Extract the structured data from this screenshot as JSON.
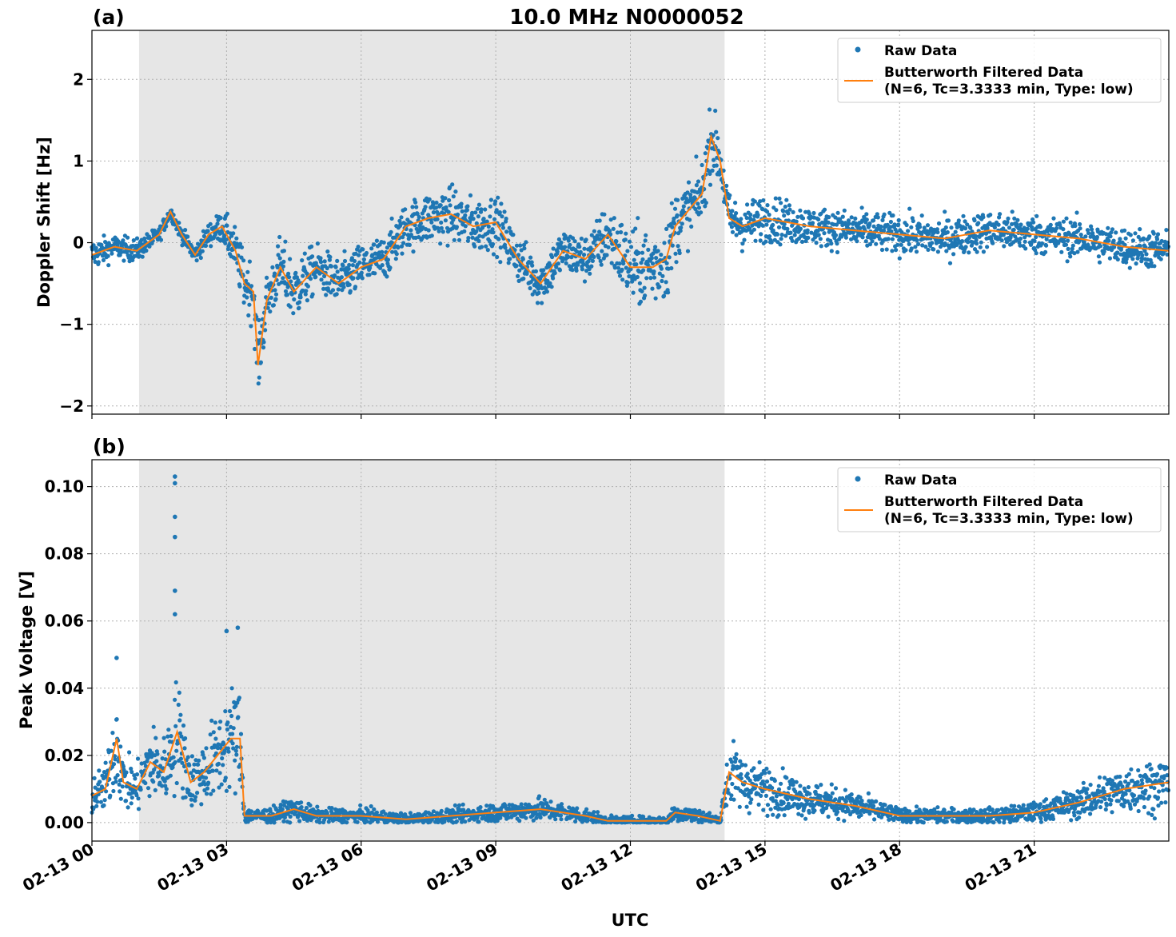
{
  "figure": {
    "title": "10.0 MHz N0000052",
    "xlabel": "UTC",
    "colors": {
      "raw": "#1f77b4",
      "filtered": "#ff7f0e",
      "night_shade": "#e6e6e6"
    },
    "x_ticks": [
      "02-13 00",
      "02-13 03",
      "02-13 06",
      "02-13 09",
      "02-13 12",
      "02-13 15",
      "02-13 18",
      "02-13 21"
    ]
  },
  "legend": {
    "raw_label": "Raw Data",
    "filtered_label_1": "Butterworth Filtered Data",
    "filtered_label_2": "(N=6, Tc=3.3333 min, Type: low)"
  },
  "chart_data": [
    {
      "type": "scatter",
      "panel_label": "(a)",
      "ylabel": "Doppler Shift [Hz]",
      "xlabel": "",
      "x_unit": "hours since 02-13 00:00 UTC",
      "xlim": [
        0,
        24
      ],
      "ylim": [
        -2.1,
        2.6
      ],
      "y_ticks": [
        -2,
        -1,
        0,
        1,
        2
      ],
      "y_tick_labels": [
        "−2",
        "−1",
        "0",
        "1",
        "2"
      ],
      "grid": true,
      "legend_position": "top-right",
      "shaded_interval_hours": [
        1.05,
        14.1
      ],
      "series": [
        {
          "name": "Butterworth Filtered Data",
          "x": [
            0,
            0.5,
            1.0,
            1.5,
            1.75,
            2.0,
            2.3,
            2.6,
            2.9,
            3.2,
            3.4,
            3.6,
            3.7,
            3.9,
            4.2,
            4.5,
            5.0,
            5.5,
            6.0,
            6.5,
            7.0,
            7.5,
            8.0,
            8.5,
            9.0,
            9.5,
            10.0,
            10.5,
            11.0,
            11.5,
            12.0,
            12.5,
            12.8,
            13.0,
            13.3,
            13.6,
            13.8,
            14.0,
            14.2,
            14.5,
            15.0,
            16.0,
            17.0,
            18.0,
            19.0,
            20.0,
            21.0,
            22.0,
            23.0,
            24.0
          ],
          "values": [
            -0.15,
            -0.05,
            -0.1,
            0.1,
            0.38,
            0.1,
            -0.15,
            0.1,
            0.2,
            -0.1,
            -0.5,
            -0.6,
            -1.5,
            -0.7,
            -0.3,
            -0.6,
            -0.3,
            -0.5,
            -0.3,
            -0.2,
            0.2,
            0.3,
            0.35,
            0.2,
            0.25,
            -0.2,
            -0.5,
            -0.1,
            -0.2,
            0.1,
            -0.3,
            -0.3,
            -0.2,
            0.2,
            0.4,
            0.6,
            1.3,
            1.0,
            0.3,
            0.2,
            0.3,
            0.2,
            0.15,
            0.1,
            0.05,
            0.15,
            0.1,
            0.05,
            -0.05,
            -0.1
          ]
        },
        {
          "name": "Raw Data",
          "spread_envelope_hz": [
            0.2,
            0.15,
            0.15,
            0.1,
            0.08,
            0.1,
            0.12,
            0.15,
            0.2,
            0.3,
            0.35,
            0.4,
            0.4,
            0.35,
            0.4,
            0.4,
            0.3,
            0.3,
            0.3,
            0.3,
            0.3,
            0.35,
            0.35,
            0.35,
            0.35,
            0.3,
            0.3,
            0.3,
            0.3,
            0.4,
            0.5,
            0.5,
            0.55,
            0.45,
            0.4,
            0.4,
            0.45,
            0.35,
            0.3,
            0.3,
            0.3,
            0.25,
            0.25,
            0.25,
            0.25,
            0.25,
            0.25,
            0.25,
            0.25,
            0.25
          ]
        }
      ]
    },
    {
      "type": "scatter",
      "panel_label": "(b)",
      "ylabel": "Peak Voltage [V]",
      "xlabel": "UTC",
      "x_unit": "hours since 02-13 00:00 UTC",
      "xlim": [
        0,
        24
      ],
      "ylim": [
        -0.0055,
        0.108
      ],
      "y_ticks": [
        0,
        0.02,
        0.04,
        0.06,
        0.08,
        0.1
      ],
      "y_tick_labels": [
        "0.00",
        "0.02",
        "0.04",
        "0.06",
        "0.08",
        "0.10"
      ],
      "grid": true,
      "legend_position": "top-right",
      "shaded_interval_hours": [
        1.05,
        14.1
      ],
      "series": [
        {
          "name": "Butterworth Filtered Data",
          "x": [
            0,
            0.3,
            0.55,
            0.7,
            1.0,
            1.3,
            1.6,
            1.9,
            2.2,
            2.5,
            2.8,
            3.1,
            3.3,
            3.4,
            4.0,
            4.5,
            5.0,
            6.0,
            7.0,
            8.0,
            9.0,
            10.0,
            11.0,
            11.5,
            12.0,
            12.8,
            13.0,
            13.5,
            14.0,
            14.2,
            14.5,
            15.0,
            16.0,
            17.0,
            18.0,
            19.0,
            20.0,
            21.0,
            22.0,
            23.0,
            24.0
          ],
          "values": [
            0.008,
            0.01,
            0.025,
            0.012,
            0.01,
            0.018,
            0.015,
            0.027,
            0.012,
            0.015,
            0.02,
            0.025,
            0.025,
            0.002,
            0.002,
            0.004,
            0.002,
            0.002,
            0.001,
            0.002,
            0.003,
            0.004,
            0.002,
            0.0005,
            0.0005,
            0.0005,
            0.003,
            0.002,
            0.0005,
            0.015,
            0.012,
            0.01,
            0.007,
            0.005,
            0.002,
            0.002,
            0.002,
            0.003,
            0.006,
            0.01,
            0.012
          ]
        },
        {
          "name": "Raw Data",
          "outliers": [
            {
              "x": 1.85,
              "y": 0.103
            },
            {
              "x": 1.85,
              "y": 0.101
            },
            {
              "x": 1.85,
              "y": 0.091
            },
            {
              "x": 1.85,
              "y": 0.085
            },
            {
              "x": 1.85,
              "y": 0.069
            },
            {
              "x": 1.85,
              "y": 0.062
            },
            {
              "x": 3.0,
              "y": 0.057
            },
            {
              "x": 3.25,
              "y": 0.058
            },
            {
              "x": 0.55,
              "y": 0.049
            }
          ]
        }
      ]
    }
  ]
}
